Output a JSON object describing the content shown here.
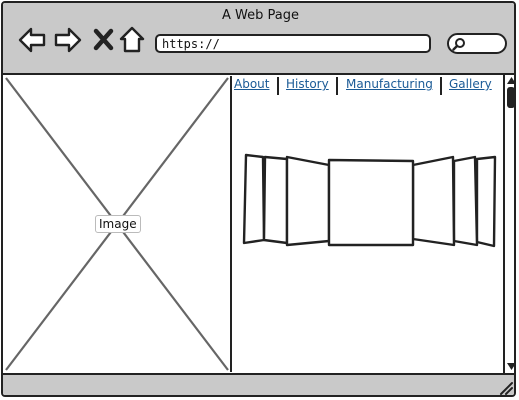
{
  "window": {
    "title": "A Web Page"
  },
  "toolbar": {
    "back_icon": "arrow-left-icon",
    "forward_icon": "arrow-right-icon",
    "stop_icon": "close-x-icon",
    "home_icon": "home-icon",
    "url_value": "https://",
    "search_icon": "magnifier-icon"
  },
  "main": {
    "image_placeholder_label": "Image",
    "nav_links": [
      {
        "label": "About"
      },
      {
        "label": "History"
      },
      {
        "label": "Manufacturing"
      },
      {
        "label": "Gallery"
      }
    ],
    "carousel_icon": "coverflow-carousel"
  },
  "colors": {
    "chrome": "#c9c9c9",
    "outline": "#222222",
    "link": "#1a5a96",
    "background": "#ffffff"
  }
}
